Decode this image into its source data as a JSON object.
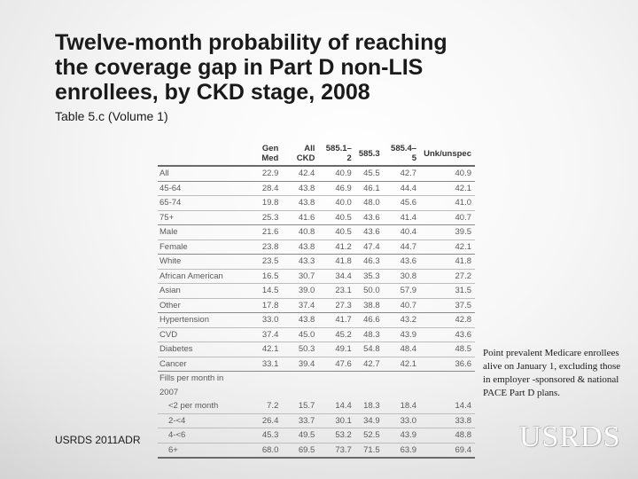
{
  "title": "Twelve-month probability of reaching\nthe coverage gap in Part D non-LIS\nenrollees, by CKD stage, 2008",
  "subtitle": "Table 5.c (Volume 1)",
  "table": {
    "headers": [
      "",
      "Gen Med",
      "All CKD",
      "585.1–2",
      "585.3",
      "585.4–5",
      "Unk/unspec"
    ],
    "rows": [
      {
        "label": "All",
        "values": [
          "22.9",
          "42.4",
          "40.9",
          "45.5",
          "42.7",
          "40.9"
        ]
      },
      {
        "label": "45-64",
        "values": [
          "28.4",
          "43.8",
          "46.9",
          "46.1",
          "44.4",
          "42.1"
        ]
      },
      {
        "label": "65-74",
        "values": [
          "19.8",
          "43.8",
          "40.0",
          "48.0",
          "45.6",
          "41.0"
        ]
      },
      {
        "label": "75+",
        "values": [
          "25.3",
          "41.6",
          "40.5",
          "43.6",
          "41.4",
          "40.7"
        ]
      },
      {
        "label": "Male",
        "values": [
          "21.6",
          "40.8",
          "40.5",
          "43.6",
          "40.4",
          "39.5"
        ]
      },
      {
        "label": "Female",
        "values": [
          "23.8",
          "43.8",
          "41.2",
          "47.4",
          "44.7",
          "42.1"
        ]
      },
      {
        "label": "White",
        "values": [
          "23.5",
          "43.3",
          "41.8",
          "46.3",
          "43.6",
          "41.8"
        ]
      },
      {
        "label": "African American",
        "values": [
          "16.5",
          "30.7",
          "34.4",
          "35.3",
          "30.8",
          "27.2"
        ]
      },
      {
        "label": "Asian",
        "values": [
          "14.5",
          "39.0",
          "23.1",
          "50.0",
          "57.9",
          "31.5"
        ]
      },
      {
        "label": "Other",
        "values": [
          "17.8",
          "37.4",
          "27.3",
          "38.8",
          "40.7",
          "37.5"
        ]
      },
      {
        "label": "Hypertension",
        "values": [
          "33.0",
          "43.8",
          "41.7",
          "46.6",
          "43.2",
          "42.8"
        ]
      },
      {
        "label": "CVD",
        "values": [
          "37.4",
          "45.0",
          "45.2",
          "48.3",
          "43.9",
          "43.6"
        ]
      },
      {
        "label": "Diabetes",
        "values": [
          "42.1",
          "50.3",
          "49.1",
          "54.8",
          "48.4",
          "48.5"
        ]
      },
      {
        "label": "Cancer",
        "values": [
          "33.1",
          "39.4",
          "47.6",
          "42.7",
          "42.1",
          "36.6"
        ]
      },
      {
        "label": "Fills per month in 2007",
        "values": [
          "",
          "",
          "",
          "",
          "",
          ""
        ]
      },
      {
        "label": "<2 per month",
        "values": [
          "7.2",
          "15.7",
          "14.4",
          "18.3",
          "18.4",
          "14.4"
        ]
      },
      {
        "label": "2-<4",
        "values": [
          "26.4",
          "33.7",
          "30.1",
          "34.9",
          "33.0",
          "33.8"
        ]
      },
      {
        "label": "4-<6",
        "values": [
          "45.3",
          "49.5",
          "53.2",
          "52.5",
          "43.9",
          "48.8"
        ]
      },
      {
        "label": "6+",
        "values": [
          "68.0",
          "69.5",
          "73.7",
          "71.5",
          "63.9",
          "69.4"
        ]
      }
    ]
  },
  "note": "Point prevalent Medicare enrollees alive on January 1, excluding those in employer -sponsored & national PACE Part D plans.",
  "footer": "USRDS 2011ADR",
  "logo": "USRDS"
}
